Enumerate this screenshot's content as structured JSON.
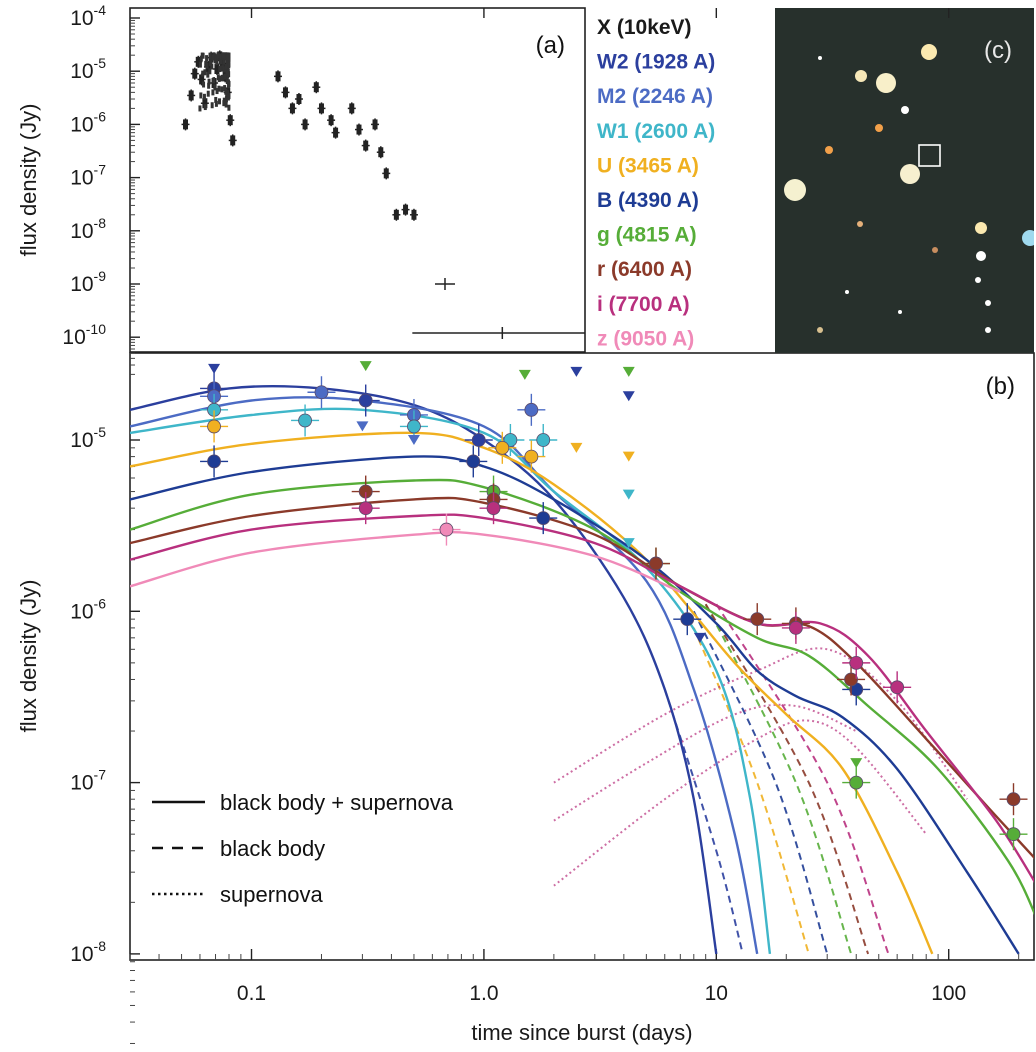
{
  "chart_data": [
    {
      "panel": "(a)",
      "type": "scatter",
      "xscale": "log",
      "yscale": "log",
      "xlim": [
        0.03,
        2.4
      ],
      "ylim": [
        7e-11,
        0.00015
      ],
      "ylabel": "flux density (Jy)",
      "yticks": [
        {
          "value": 0.0001,
          "label": "10",
          "exp": "-4"
        },
        {
          "value": 1e-05,
          "label": "10",
          "exp": "-5"
        },
        {
          "value": 1e-06,
          "label": "10",
          "exp": "-6"
        },
        {
          "value": 1e-07,
          "label": "10",
          "exp": "-7"
        },
        {
          "value": 1e-08,
          "label": "10",
          "exp": "-8"
        },
        {
          "value": 1e-09,
          "label": "10",
          "exp": "-9"
        },
        {
          "value": 1e-10,
          "label": "10",
          "exp": "-10"
        }
      ],
      "series": [
        {
          "band": "X (10keV)",
          "color": "#222222",
          "points": [
            {
              "x": 0.052,
              "y": 1e-06
            },
            {
              "x": 0.055,
              "y": 3.5e-06
            },
            {
              "x": 0.057,
              "y": 9e-06
            },
            {
              "x": 0.059,
              "y": 1.5e-05
            },
            {
              "x": 0.061,
              "y": 7e-06
            },
            {
              "x": 0.063,
              "y": 2.5e-06
            },
            {
              "x": 0.065,
              "y": 1.2e-05
            },
            {
              "x": 0.067,
              "y": 1.8e-05
            },
            {
              "x": 0.069,
              "y": 6e-06
            },
            {
              "x": 0.071,
              "y": 1.1e-05
            },
            {
              "x": 0.073,
              "y": 1.9e-05
            },
            {
              "x": 0.075,
              "y": 1.4e-05
            },
            {
              "x": 0.077,
              "y": 8e-06
            },
            {
              "x": 0.079,
              "y": 4e-06
            },
            {
              "x": 0.081,
              "y": 1.2e-06
            },
            {
              "x": 0.083,
              "y": 5e-07
            },
            {
              "x": 0.13,
              "y": 8e-06
            },
            {
              "x": 0.14,
              "y": 4e-06
            },
            {
              "x": 0.15,
              "y": 2e-06
            },
            {
              "x": 0.16,
              "y": 3e-06
            },
            {
              "x": 0.17,
              "y": 1e-06
            },
            {
              "x": 0.19,
              "y": 5e-06
            },
            {
              "x": 0.2,
              "y": 2e-06
            },
            {
              "x": 0.22,
              "y": 1.2e-06
            },
            {
              "x": 0.23,
              "y": 7e-07
            },
            {
              "x": 0.27,
              "y": 2e-06
            },
            {
              "x": 0.29,
              "y": 8e-07
            },
            {
              "x": 0.31,
              "y": 4e-07
            },
            {
              "x": 0.34,
              "y": 1e-06
            },
            {
              "x": 0.36,
              "y": 3e-07
            },
            {
              "x": 0.38,
              "y": 1.2e-07
            },
            {
              "x": 0.42,
              "y": 2e-08
            },
            {
              "x": 0.46,
              "y": 2.5e-08
            },
            {
              "x": 0.5,
              "y": 2e-08
            },
            {
              "x": 0.68,
              "y": 1e-09
            },
            {
              "x": 1.2,
              "y": 1.2e-10
            }
          ]
        }
      ],
      "label": "(a)"
    },
    {
      "panel": "(b)",
      "type": "line",
      "xscale": "log",
      "yscale": "log",
      "xlim": [
        0.03,
        240
      ],
      "ylim": [
        9e-09,
        3e-05
      ],
      "xlabel": "time since burst (days)",
      "ylabel": "flux density (Jy)",
      "xticks": [
        {
          "value": 0.1,
          "label": "0.1"
        },
        {
          "value": 1.0,
          "label": "1.0"
        },
        {
          "value": 10,
          "label": "10"
        },
        {
          "value": 100,
          "label": "100"
        }
      ],
      "yticks": [
        {
          "value": 1e-05,
          "label": "10",
          "exp": "-5"
        },
        {
          "value": 1e-06,
          "label": "10",
          "exp": "-6"
        },
        {
          "value": 1e-07,
          "label": "10",
          "exp": "-7"
        },
        {
          "value": 1e-08,
          "label": "10",
          "exp": "-8"
        }
      ],
      "line_styles": [
        {
          "style": "solid",
          "label": "black body + supernova"
        },
        {
          "style": "dashed",
          "label": "black body"
        },
        {
          "style": "dotted",
          "label": "supernova"
        }
      ],
      "series": [
        {
          "band": "W2 (1928 A)",
          "color": "#2b3f9e",
          "points": [
            {
              "x": 0.069,
              "y": 2e-05
            },
            {
              "x": 0.31,
              "y": 1.7e-05
            },
            {
              "x": 0.95,
              "y": 1e-05
            }
          ]
        },
        {
          "band": "M2 (2246 A)",
          "color": "#4c6bc4",
          "points": [
            {
              "x": 0.069,
              "y": 1.8e-05
            },
            {
              "x": 0.2,
              "y": 1.9e-05
            },
            {
              "x": 0.5,
              "y": 1.4e-05
            },
            {
              "x": 1.6,
              "y": 1.5e-05
            }
          ]
        },
        {
          "band": "W1 (2600 A)",
          "color": "#3fb6c9",
          "points": [
            {
              "x": 0.069,
              "y": 1.5e-05
            },
            {
              "x": 0.17,
              "y": 1.3e-05
            },
            {
              "x": 0.5,
              "y": 1.2e-05
            },
            {
              "x": 1.3,
              "y": 1e-05
            },
            {
              "x": 1.8,
              "y": 1e-05
            }
          ]
        },
        {
          "band": "U (3465 A)",
          "color": "#f0b020",
          "points": [
            {
              "x": 0.069,
              "y": 1.2e-05
            },
            {
              "x": 1.2,
              "y": 9e-06
            },
            {
              "x": 1.6,
              "y": 8e-06
            }
          ]
        },
        {
          "band": "B (4390 A)",
          "color": "#1e3c94",
          "points": [
            {
              "x": 0.069,
              "y": 7.5e-06
            },
            {
              "x": 0.9,
              "y": 7.5e-06
            },
            {
              "x": 1.8,
              "y": 3.5e-06
            },
            {
              "x": 7.5,
              "y": 9e-07
            },
            {
              "x": 40,
              "y": 3.5e-07
            }
          ]
        },
        {
          "band": "g (4815 A)",
          "color": "#56ad38",
          "points": [
            {
              "x": 1.1,
              "y": 5e-06
            },
            {
              "x": 5.5,
              "y": 1.9e-06
            },
            {
              "x": 40,
              "y": 1e-07
            },
            {
              "x": 190,
              "y": 5e-08
            }
          ]
        },
        {
          "band": "r (6400 A)",
          "color": "#8b3a2a",
          "points": [
            {
              "x": 0.31,
              "y": 5e-06
            },
            {
              "x": 1.1,
              "y": 4.5e-06
            },
            {
              "x": 5.5,
              "y": 1.9e-06
            },
            {
              "x": 15,
              "y": 9e-07
            },
            {
              "x": 22,
              "y": 8.5e-07
            },
            {
              "x": 38,
              "y": 4e-07
            },
            {
              "x": 190,
              "y": 8e-08
            }
          ]
        },
        {
          "band": "i (7700 A)",
          "color": "#b8307e",
          "points": [
            {
              "x": 0.31,
              "y": 4e-06
            },
            {
              "x": 1.1,
              "y": 4e-06
            },
            {
              "x": 22,
              "y": 8e-07
            },
            {
              "x": 40,
              "y": 5e-07
            },
            {
              "x": 60,
              "y": 3.6e-07
            }
          ]
        },
        {
          "band": "z (9050 A)",
          "color": "#f08ab8",
          "points": [
            {
              "x": 0.69,
              "y": 3e-06
            }
          ]
        }
      ],
      "upper_limits": [
        {
          "x": 0.069,
          "y": 2.6e-05,
          "color": "#2b3f9e"
        },
        {
          "x": 0.31,
          "y": 2.7e-05,
          "color": "#56ad38"
        },
        {
          "x": 1.5,
          "y": 2.4e-05,
          "color": "#56ad38"
        },
        {
          "x": 2.5,
          "y": 2.5e-05,
          "color": "#2b3f9e"
        },
        {
          "x": 4.2,
          "y": 2.5e-05,
          "color": "#56ad38"
        },
        {
          "x": 4.2,
          "y": 1.8e-05,
          "color": "#2b3f9e"
        },
        {
          "x": 0.3,
          "y": 1.2e-05,
          "color": "#4c6bc4"
        },
        {
          "x": 0.5,
          "y": 1e-05,
          "color": "#4c6bc4"
        },
        {
          "x": 2.5,
          "y": 9e-06,
          "color": "#f0b020"
        },
        {
          "x": 4.2,
          "y": 8e-06,
          "color": "#f0b020"
        },
        {
          "x": 4.2,
          "y": 4.8e-06,
          "color": "#3fb6c9"
        },
        {
          "x": 4.2,
          "y": 2.5e-06,
          "color": "#3fb6c9"
        },
        {
          "x": 8.5,
          "y": 7e-07,
          "color": "#2b3f9e"
        },
        {
          "x": 40,
          "y": 1.3e-07,
          "color": "#56ad38"
        }
      ],
      "label": "(b)"
    }
  ],
  "legend": {
    "bands": [
      {
        "label": "X (10keV)",
        "color": "#1a1a1a"
      },
      {
        "label": "W2 (1928 A)",
        "color": "#2b3f9e"
      },
      {
        "label": "M2 (2246 A)",
        "color": "#4c6bc4"
      },
      {
        "label": "W1 (2600 A)",
        "color": "#3fb6c9"
      },
      {
        "label": "U  (3465 A)",
        "color": "#f0b020"
      },
      {
        "label": "B  (4390 A)",
        "color": "#1e3c94"
      },
      {
        "label": "g  (4815 A)",
        "color": "#56ad38"
      },
      {
        "label": "r (6400 A)",
        "color": "#8b3a2a"
      },
      {
        "label": "i (7700 A)",
        "color": "#b8307e"
      },
      {
        "label": "z (9050 A)",
        "color": "#f08ab8"
      }
    ]
  },
  "image_panel": {
    "label": "(c)"
  }
}
